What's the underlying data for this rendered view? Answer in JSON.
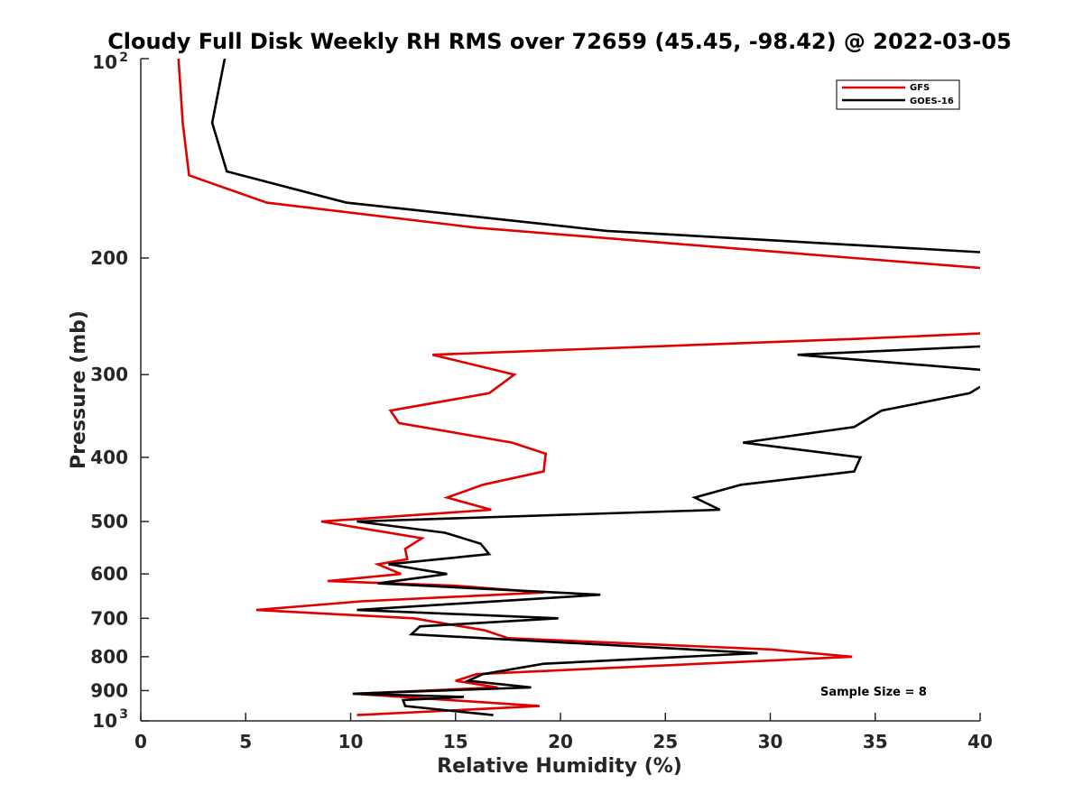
{
  "chart_data": {
    "type": "line",
    "title": "Cloudy Full Disk Weekly RH RMS over 72659 (45.45, -98.42) @ 2022-03-05",
    "xlabel": "Relative Humidity (%)",
    "ylabel": "Pressure (mb)",
    "xlim": [
      0,
      40
    ],
    "ylim": [
      100,
      1000
    ],
    "y_scale": "log",
    "y_reversed": true,
    "x_ticks": [
      "0",
      "5",
      "10",
      "15",
      "20",
      "25",
      "30",
      "35",
      "40"
    ],
    "y_ticks": [
      {
        "value": 100,
        "base": "10",
        "exp": "2"
      },
      {
        "value": 200,
        "label": "200"
      },
      {
        "value": 300,
        "label": "300"
      },
      {
        "value": 400,
        "label": "400"
      },
      {
        "value": 500,
        "label": "500"
      },
      {
        "value": 600,
        "label": "600"
      },
      {
        "value": 700,
        "label": "700"
      },
      {
        "value": 800,
        "label": "800"
      },
      {
        "value": 900,
        "label": "900"
      },
      {
        "value": 1000,
        "base": "10",
        "exp": "3"
      }
    ],
    "grid": false,
    "legend_position": "top-right",
    "annotation": "Sample Size = 8",
    "series": [
      {
        "name": "GFS",
        "color": "#e00000",
        "points": [
          [
            1.8,
            100
          ],
          [
            2.0,
            125
          ],
          [
            2.3,
            150
          ],
          [
            6.0,
            165
          ],
          [
            16.0,
            180
          ],
          [
            34.0,
            200
          ],
          [
            40.0,
            207
          ],
          [
            null,
            null
          ],
          [
            40.0,
            260
          ],
          [
            34.0,
            265
          ],
          [
            13.9,
            280
          ],
          [
            17.8,
            300
          ],
          [
            16.6,
            320
          ],
          [
            11.9,
            340
          ],
          [
            12.3,
            355
          ],
          [
            17.7,
            380
          ],
          [
            19.3,
            395
          ],
          [
            19.2,
            420
          ],
          [
            16.3,
            440
          ],
          [
            14.6,
            460
          ],
          [
            16.7,
            480
          ],
          [
            8.6,
            500
          ],
          [
            13.4,
            530
          ],
          [
            12.6,
            550
          ],
          [
            12.7,
            570
          ],
          [
            11.3,
            580
          ],
          [
            12.4,
            600
          ],
          [
            8.9,
            615
          ],
          [
            15.0,
            625
          ],
          [
            19.2,
            640
          ],
          [
            10.5,
            660
          ],
          [
            5.5,
            680
          ],
          [
            13.0,
            700
          ],
          [
            16.4,
            730
          ],
          [
            17.5,
            750
          ],
          [
            30.0,
            780
          ],
          [
            33.9,
            800
          ],
          [
            16.0,
            850
          ],
          [
            15.0,
            870
          ],
          [
            17.0,
            890
          ],
          [
            10.2,
            910
          ],
          [
            19.0,
            950
          ],
          [
            10.3,
            980
          ]
        ]
      },
      {
        "name": "GOES-16",
        "color": "#000000",
        "points": [
          [
            4.0,
            100
          ],
          [
            3.4,
            125
          ],
          [
            4.1,
            148
          ],
          [
            9.8,
            165
          ],
          [
            22.2,
            182
          ],
          [
            40.0,
            196
          ],
          [
            null,
            null
          ],
          [
            40.0,
            272
          ],
          [
            31.3,
            280
          ],
          [
            40.0,
            295
          ],
          [
            null,
            null
          ],
          [
            40.0,
            313
          ],
          [
            39.5,
            320
          ],
          [
            35.3,
            340
          ],
          [
            34.0,
            360
          ],
          [
            28.7,
            380
          ],
          [
            34.3,
            400
          ],
          [
            34.0,
            420
          ],
          [
            28.6,
            440
          ],
          [
            26.4,
            460
          ],
          [
            27.6,
            480
          ],
          [
            10.3,
            500
          ],
          [
            14.5,
            520
          ],
          [
            16.2,
            540
          ],
          [
            16.6,
            560
          ],
          [
            11.8,
            580
          ],
          [
            14.6,
            600
          ],
          [
            11.3,
            620
          ],
          [
            21.9,
            645
          ],
          [
            10.3,
            680
          ],
          [
            19.9,
            700
          ],
          [
            13.3,
            720
          ],
          [
            12.9,
            740
          ],
          [
            29.4,
            790
          ],
          [
            19.2,
            820
          ],
          [
            16.3,
            850
          ],
          [
            15.6,
            870
          ],
          [
            18.6,
            890
          ],
          [
            10.1,
            910
          ],
          [
            15.4,
            920
          ],
          [
            12.5,
            930
          ],
          [
            12.6,
            950
          ],
          [
            16.8,
            980
          ]
        ]
      }
    ]
  }
}
